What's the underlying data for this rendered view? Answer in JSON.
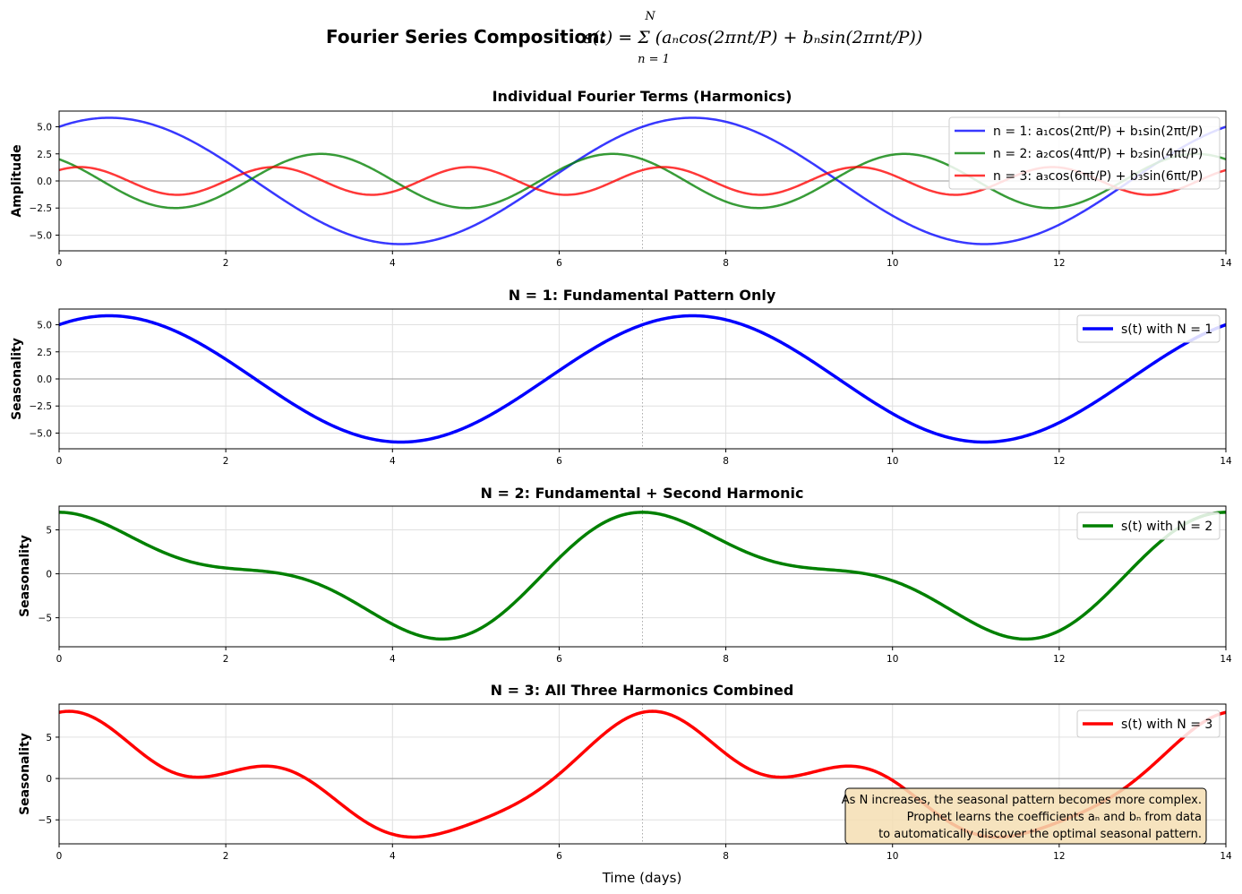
{
  "suptitle": {
    "text": "Fourier Series Composition: ",
    "formula": "s(t) = Σ (aₙcos(2πnt/P) + bₙsin(2πnt/P))",
    "sum_lower": "n = 1",
    "sum_upper": "N"
  },
  "colors": {
    "n1": "#0000ff",
    "n2": "#008000",
    "n3": "#ff0000",
    "grid": "#e0e0e0",
    "zero": "#999999",
    "annotation_bg": "#f5deb3"
  },
  "chart_data": [
    {
      "type": "line",
      "title": "Individual Fourier Terms (Harmonics)",
      "ylabel": "Amplitude",
      "xlabel": "",
      "xlim": [
        0,
        14
      ],
      "ylim": [
        -6.45,
        6.45
      ],
      "xticks": [
        "0",
        "2",
        "4",
        "6",
        "8",
        "10",
        "12",
        "14"
      ],
      "yticks": [
        "5.0",
        "2.5",
        "0.0",
        "−2.5",
        "−5.0"
      ],
      "ytick_values": [
        5,
        2.5,
        0,
        -2.5,
        -5
      ],
      "grid": true,
      "legend": "top-right",
      "series": [
        {
          "name": "n = 1: a₁cos(2πt/P) + b₁sin(2πt/P)",
          "harmonic": 1,
          "a": 5,
          "b": 3,
          "color": "#0000ff",
          "linewidth": 2.5,
          "opacity": 0.78
        },
        {
          "name": "n = 2: a₂cos(4πt/P) + b₂sin(4πt/P)",
          "harmonic": 2,
          "a": 2,
          "b": -1.5,
          "color": "#008000",
          "linewidth": 2.5,
          "opacity": 0.78
        },
        {
          "name": "n = 3: a₃cos(6πt/P) + b₃sin(6πt/P)",
          "harmonic": 3,
          "a": 1,
          "b": 0.8,
          "color": "#ff0000",
          "linewidth": 2.5,
          "opacity": 0.78
        }
      ]
    },
    {
      "type": "line",
      "title": "N = 1: Fundamental Pattern Only",
      "ylabel": "Seasonality",
      "xlabel": "",
      "xlim": [
        0,
        14
      ],
      "ylim": [
        -6.45,
        6.45
      ],
      "xticks": [
        "0",
        "2",
        "4",
        "6",
        "8",
        "10",
        "12",
        "14"
      ],
      "yticks": [
        "5.0",
        "2.5",
        "0.0",
        "−2.5",
        "−5.0"
      ],
      "ytick_values": [
        5,
        2.5,
        0,
        -2.5,
        -5
      ],
      "grid": true,
      "legend": "top-right",
      "series": [
        {
          "name": "s(t) with N = 1",
          "N": 1,
          "color": "#0000ff",
          "linewidth": 3.5,
          "opacity": 1
        }
      ]
    },
    {
      "type": "line",
      "title": "N = 2: Fundamental + Second Harmonic",
      "ylabel": "Seasonality",
      "xlabel": "",
      "xlim": [
        0,
        14
      ],
      "ylim": [
        -8.3,
        7.7
      ],
      "xticks": [
        "0",
        "2",
        "4",
        "6",
        "8",
        "10",
        "12",
        "14"
      ],
      "yticks": [
        "5",
        "0",
        "−5"
      ],
      "ytick_values": [
        5,
        0,
        -5
      ],
      "grid": true,
      "legend": "top-right",
      "series": [
        {
          "name": "s(t) with N = 2",
          "N": 2,
          "color": "#008000",
          "linewidth": 3.5,
          "opacity": 1
        }
      ]
    },
    {
      "type": "line",
      "title": "N = 3: All Three Harmonics Combined",
      "ylabel": "Seasonality",
      "xlabel": "Time (days)",
      "xlim": [
        0,
        14
      ],
      "ylim": [
        -7.9,
        9.0
      ],
      "xticks": [
        "0",
        "2",
        "4",
        "6",
        "8",
        "10",
        "12",
        "14"
      ],
      "yticks": [
        "5",
        "0",
        "−5"
      ],
      "ytick_values": [
        5,
        0,
        -5
      ],
      "grid": true,
      "legend": "top-right",
      "series": [
        {
          "name": "s(t) with N = 3",
          "N": 3,
          "color": "#ff0000",
          "linewidth": 3.5,
          "opacity": 1
        }
      ],
      "annotation": [
        "As N increases, the seasonal pattern becomes more complex.",
        "Prophet learns the coefficients aₙ and bₙ from data",
        "to automatically discover the optimal seasonal pattern."
      ]
    }
  ],
  "coefficients": {
    "period_days": 7,
    "a": [
      5,
      2,
      1
    ],
    "b": [
      3,
      -1.5,
      0.8
    ]
  },
  "period_marker_x": 7
}
